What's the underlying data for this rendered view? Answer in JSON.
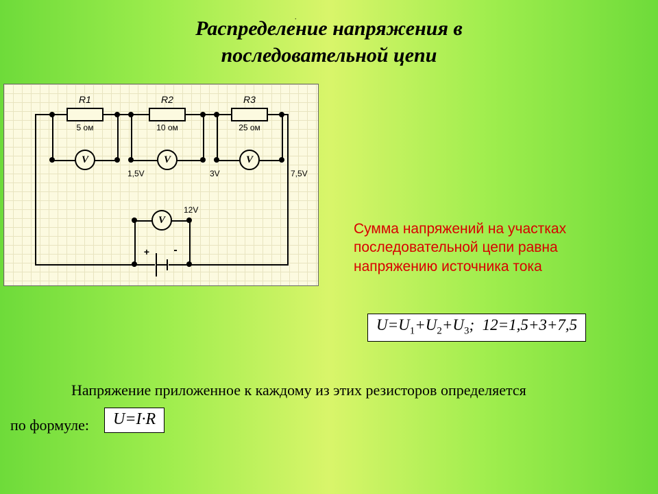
{
  "title_line1": "Распределение напряжения в",
  "title_line2": "последовательной цепи",
  "title_fontsize": 30,
  "circuit": {
    "grid_bg": "#fcfae0",
    "grid_line": "#e8e4c0",
    "R1": {
      "label": "R1",
      "value": "5 ом",
      "voltage": "1,5V"
    },
    "R2": {
      "label": "R2",
      "value": "10 ом",
      "voltage": "3V"
    },
    "R3": {
      "label": "R3",
      "value": "25 ом",
      "voltage": "7,5V"
    },
    "source_voltage": "12V",
    "voltmeter_letter": "V",
    "plus": "+",
    "minus": "-"
  },
  "red_text": "Сумма напряжений на участках последовательной цепи равна напряжению источника тока",
  "red_text_color": "#d80000",
  "red_text_fontsize": 21,
  "formula1_html": "U=U<sub>1</sub>+U<sub>2</sub>+U<sub>3</sub>;&nbsp;&nbsp;12=1,5+3+7,5",
  "formula1_fontsize": 23,
  "bottom_text_1": "Напряжение приложенное к каждому из этих резисторов определяется",
  "bottom_text_2": "по формуле:",
  "bottom_fontsize": 22,
  "formula2_html": "U=I·R",
  "formula2_fontsize": 24
}
